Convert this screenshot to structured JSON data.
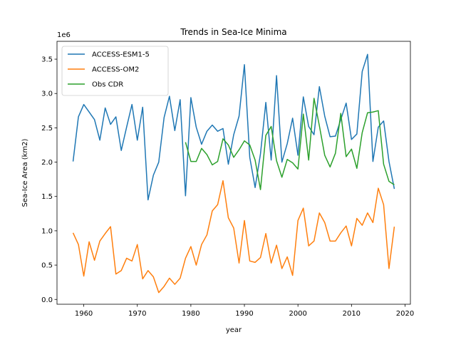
{
  "chart_data": {
    "type": "line",
    "title": "Trends in Sea-Ice Minima",
    "xlabel": "year",
    "ylabel": "Sea-Ice Area (km2)",
    "y_offset_label": "1e6",
    "xlim": [
      1955,
      2021
    ],
    "ylim": [
      -0.07,
      3.76
    ],
    "x_ticks": [
      1960,
      1970,
      1980,
      1990,
      2000,
      2010,
      2020
    ],
    "y_ticks": [
      0.0,
      0.5,
      1.0,
      1.5,
      2.0,
      2.5,
      3.0,
      3.5
    ],
    "grid": false,
    "legend_position": "upper-left",
    "series": [
      {
        "name": "ACCESS-ESM1-5",
        "color": "#1f77b4",
        "x": [
          1958,
          1959,
          1960,
          1961,
          1962,
          1963,
          1964,
          1965,
          1966,
          1967,
          1968,
          1969,
          1970,
          1971,
          1972,
          1973,
          1974,
          1975,
          1976,
          1977,
          1978,
          1979,
          1980,
          1981,
          1982,
          1983,
          1984,
          1985,
          1986,
          1987,
          1988,
          1989,
          1990,
          1991,
          1992,
          1993,
          1994,
          1995,
          1996,
          1997,
          1998,
          1999,
          2000,
          2001,
          2002,
          2003,
          2004,
          2005,
          2006,
          2007,
          2008,
          2009,
          2010,
          2011,
          2012,
          2013,
          2014,
          2015,
          2016,
          2017,
          2018
        ],
        "values": [
          2.01,
          2.66,
          2.84,
          2.73,
          2.62,
          2.32,
          2.79,
          2.55,
          2.66,
          2.17,
          2.51,
          2.84,
          2.32,
          2.8,
          1.45,
          1.81,
          2.0,
          2.65,
          2.96,
          2.46,
          2.91,
          1.51,
          2.94,
          2.51,
          2.26,
          2.45,
          2.54,
          2.45,
          2.49,
          1.97,
          2.4,
          2.67,
          3.42,
          2.07,
          1.63,
          2.12,
          2.87,
          2.03,
          3.26,
          2.0,
          2.27,
          2.64,
          2.1,
          2.95,
          2.52,
          2.4,
          3.1,
          2.67,
          2.37,
          2.38,
          2.62,
          2.86,
          2.33,
          2.41,
          3.32,
          3.57,
          2.01,
          2.51,
          2.6,
          2.01,
          1.61
        ]
      },
      {
        "name": "ACCESS-OM2",
        "color": "#ff7f0e",
        "x": [
          1958,
          1959,
          1960,
          1961,
          1962,
          1963,
          1964,
          1965,
          1966,
          1967,
          1968,
          1969,
          1970,
          1971,
          1972,
          1973,
          1974,
          1975,
          1976,
          1977,
          1978,
          1979,
          1980,
          1981,
          1982,
          1983,
          1984,
          1985,
          1986,
          1987,
          1988,
          1989,
          1990,
          1991,
          1992,
          1993,
          1994,
          1995,
          1996,
          1997,
          1998,
          1999,
          2000,
          2001,
          2002,
          2003,
          2004,
          2005,
          2006,
          2007,
          2008,
          2009,
          2010,
          2011,
          2012,
          2013,
          2014,
          2015,
          2016,
          2017,
          2018
        ],
        "values": [
          0.97,
          0.8,
          0.34,
          0.84,
          0.57,
          0.85,
          0.96,
          1.06,
          0.37,
          0.42,
          0.6,
          0.56,
          0.8,
          0.3,
          0.42,
          0.33,
          0.1,
          0.19,
          0.31,
          0.22,
          0.31,
          0.6,
          0.77,
          0.5,
          0.8,
          0.94,
          1.29,
          1.38,
          1.73,
          1.19,
          1.04,
          0.53,
          1.15,
          0.56,
          0.54,
          0.61,
          0.96,
          0.53,
          0.79,
          0.45,
          0.62,
          0.35,
          1.15,
          1.33,
          0.78,
          0.85,
          1.26,
          1.12,
          0.85,
          0.85,
          0.97,
          1.07,
          0.78,
          1.18,
          1.08,
          1.26,
          1.12,
          1.62,
          1.38,
          0.45,
          1.06
        ]
      },
      {
        "name": "Obs CDR",
        "color": "#2ca02c",
        "x": [
          1979,
          1980,
          1981,
          1982,
          1983,
          1984,
          1985,
          1986,
          1987,
          1988,
          1989,
          1990,
          1991,
          1992,
          1993,
          1994,
          1995,
          1996,
          1997,
          1998,
          1999,
          2000,
          2001,
          2002,
          2003,
          2004,
          2005,
          2006,
          2007,
          2008,
          2009,
          2010,
          2011,
          2012,
          2013,
          2014,
          2015,
          2016,
          2017,
          2018
        ],
        "values": [
          2.29,
          2.01,
          2.01,
          2.2,
          2.11,
          1.96,
          2.01,
          2.34,
          2.25,
          2.07,
          2.18,
          2.31,
          2.25,
          2.03,
          1.6,
          2.39,
          2.52,
          2.02,
          1.78,
          2.04,
          1.99,
          1.9,
          2.7,
          2.03,
          2.93,
          2.53,
          2.1,
          1.93,
          2.13,
          2.71,
          2.08,
          2.19,
          1.91,
          2.43,
          2.72,
          2.73,
          2.75,
          1.97,
          1.72,
          1.67
        ]
      }
    ]
  }
}
